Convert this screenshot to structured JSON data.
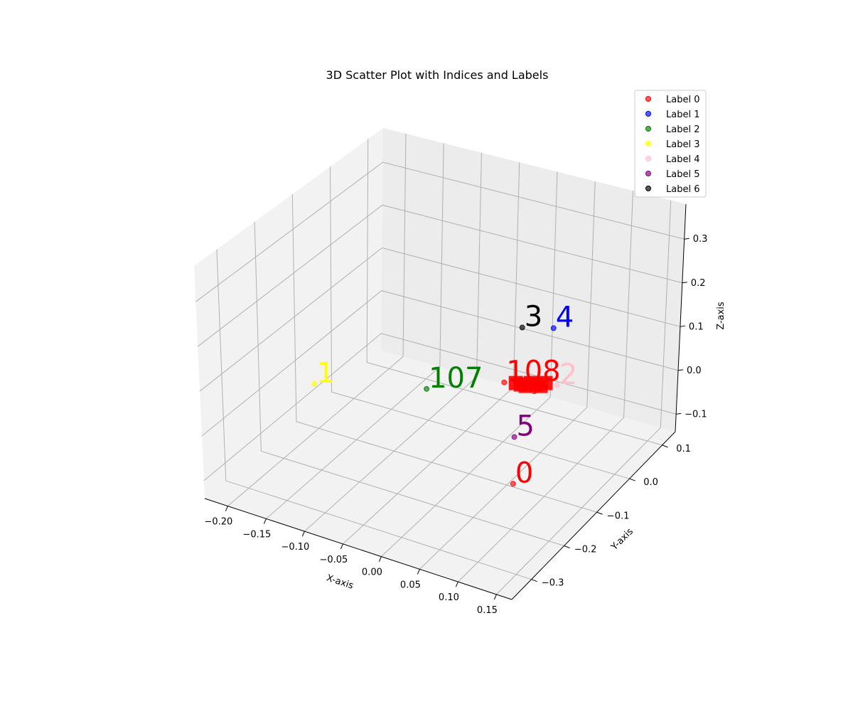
{
  "chart_data": {
    "type": "scatter",
    "title": "3D Scatter Plot with Indices and Labels",
    "xlabel": "X-axis",
    "ylabel": "Y-axis",
    "zlabel": "Z-axis",
    "xlim": [
      -0.23,
      0.17
    ],
    "ylim": [
      -0.36,
      0.14
    ],
    "zlim": [
      -0.14,
      0.38
    ],
    "xticks": [
      -0.2,
      -0.15,
      -0.1,
      -0.05,
      0.0,
      0.05,
      0.1,
      0.15
    ],
    "xtick_labels": [
      "−0.20",
      "−0.15",
      "−0.10",
      "−0.05",
      "0.00",
      "0.05",
      "0.10",
      "0.15"
    ],
    "yticks": [
      -0.3,
      -0.2,
      -0.1,
      0.0,
      0.1
    ],
    "ytick_labels": [
      "−0.3",
      "−0.2",
      "−0.1",
      "0.0",
      "0.1"
    ],
    "zticks": [
      -0.1,
      0.0,
      0.1,
      0.2,
      0.3
    ],
    "ztick_labels": [
      "−0.1",
      "0.0",
      "0.1",
      "0.2",
      "0.3"
    ],
    "grid": true,
    "legend_position": "top-right",
    "series": [
      {
        "name": "Label 0",
        "color": "#ff0000",
        "points": [
          {
            "index": "0",
            "x": 0.08,
            "y": -0.15,
            "z": -0.08
          },
          {
            "index": "108",
            "x": 0.0,
            "y": 0.0,
            "z": 0.0
          },
          {
            "index": "",
            "x": 0.01,
            "y": 0.01,
            "z": 0.0
          },
          {
            "index": "",
            "x": 0.02,
            "y": 0.0,
            "z": 0.01
          },
          {
            "index": "",
            "x": 0.03,
            "y": 0.01,
            "z": 0.0
          },
          {
            "index": "",
            "x": 0.04,
            "y": 0.0,
            "z": 0.0
          },
          {
            "index": "",
            "x": 0.05,
            "y": 0.01,
            "z": 0.01
          }
        ]
      },
      {
        "name": "Label 1",
        "color": "#0000ff",
        "points": [
          {
            "index": "4",
            "x": 0.05,
            "y": 0.03,
            "z": 0.13
          }
        ]
      },
      {
        "name": "Label 2",
        "color": "#008000",
        "points": [
          {
            "index": "107",
            "x": -0.08,
            "y": -0.05,
            "z": -0.02
          }
        ]
      },
      {
        "name": "Label 3",
        "color": "#ffff00",
        "points": [
          {
            "index": "1",
            "x": -0.21,
            "y": -0.09,
            "z": -0.05
          }
        ]
      },
      {
        "name": "Label 4",
        "color": "#ffc0cb",
        "points": [
          {
            "index": "2",
            "x": 0.07,
            "y": 0.0,
            "z": 0.03
          }
        ]
      },
      {
        "name": "Label 5",
        "color": "#800080",
        "points": [
          {
            "index": "5",
            "x": 0.05,
            "y": -0.08,
            "z": -0.04
          }
        ]
      },
      {
        "name": "Label 6",
        "color": "#000000",
        "points": [
          {
            "index": "3",
            "x": 0.0,
            "y": 0.05,
            "z": 0.09
          }
        ]
      }
    ]
  }
}
